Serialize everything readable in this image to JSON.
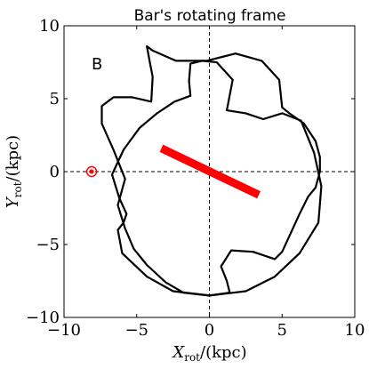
{
  "chart_data": {
    "type": "line",
    "title": "Bar's rotating frame",
    "panel_label": "B",
    "xlabel": {
      "symbol": "X",
      "subscript": "rot",
      "unit": "/(kpc)"
    },
    "ylabel": {
      "symbol": "Y",
      "subscript": "rot",
      "unit": "/(kpc)"
    },
    "xlim": [
      -10,
      10
    ],
    "ylim": [
      -10,
      10
    ],
    "xticks": [
      -10,
      -5,
      0,
      5,
      10
    ],
    "yticks": [
      -10,
      -5,
      0,
      5,
      10
    ],
    "xtick_labels": [
      "−10",
      "−5",
      "0",
      "5",
      "10"
    ],
    "ytick_labels": [
      "−10",
      "−5",
      "0",
      "5",
      "10"
    ],
    "grid": false,
    "reference_lines": {
      "x": 0,
      "y": 0,
      "style": "dashed"
    },
    "bar": {
      "from": [
        -3.3,
        1.6
      ],
      "to": [
        3.4,
        -1.6
      ],
      "color": "#ff0000"
    },
    "marker": {
      "x": -8.1,
      "y": 0,
      "color": "#ff0000",
      "style": "circled-dot"
    },
    "series": [
      {
        "color": "#000000",
        "x": [
          -5.8,
          -6.6,
          -7.4,
          -7.4,
          -6.6,
          -5.3,
          -4.0,
          -3.9,
          -4.1,
          -4.3,
          -3.9,
          -2.3,
          -0.2,
          1.8,
          3.6,
          4.8,
          5.0,
          5.5,
          6.5,
          7.3,
          7.6,
          7.6,
          7.3,
          6.8,
          6.2,
          5.6,
          5.0,
          4.5,
          3.0,
          1.5,
          0.8,
          1.2,
          1.4,
          0.0,
          -1.8,
          -3.0,
          -4.3,
          -5.2,
          -5.8,
          -6.3,
          -5.8
        ],
        "y": [
          -0.5,
          1.5,
          3.3,
          4.5,
          5.1,
          5.1,
          4.8,
          6.5,
          7.5,
          8.6,
          8.3,
          7.6,
          7.6,
          8.1,
          7.6,
          6.3,
          4.4,
          4.0,
          3.3,
          2.1,
          1.0,
          0.0,
          -1.1,
          -1.7,
          -2.9,
          -4.2,
          -5.5,
          -6.0,
          -5.5,
          -5.4,
          -6.5,
          -7.5,
          -8.3,
          -8.5,
          -8.3,
          -7.6,
          -6.4,
          -5.3,
          -3.9,
          -2.3,
          -0.5
        ]
      },
      {
        "color": "#000000",
        "x": [
          -6.3,
          -6.0,
          -4.3,
          -2.5,
          0.0,
          2.5,
          4.5,
          6.2,
          7.5,
          7.7,
          7.2,
          6.3,
          5.0,
          3.7,
          2.5,
          1.2,
          1.6,
          0.5,
          -0.5,
          -1.3,
          -1.4,
          -1.3,
          -2.4,
          -3.6,
          -4.8,
          -5.9,
          -6.7,
          -6.2,
          -5.7,
          -5.9,
          -6.3
        ],
        "y": [
          -4.0,
          -5.6,
          -7.2,
          -8.2,
          -8.5,
          -8.2,
          -7.2,
          -5.6,
          -3.5,
          -1.0,
          1.3,
          3.5,
          4.0,
          3.6,
          4.0,
          4.2,
          6.3,
          7.5,
          7.6,
          7.4,
          6.2,
          5.2,
          4.8,
          4.0,
          3.0,
          1.5,
          -0.2,
          -1.8,
          -2.9,
          -3.5,
          -4.0
        ]
      }
    ]
  }
}
